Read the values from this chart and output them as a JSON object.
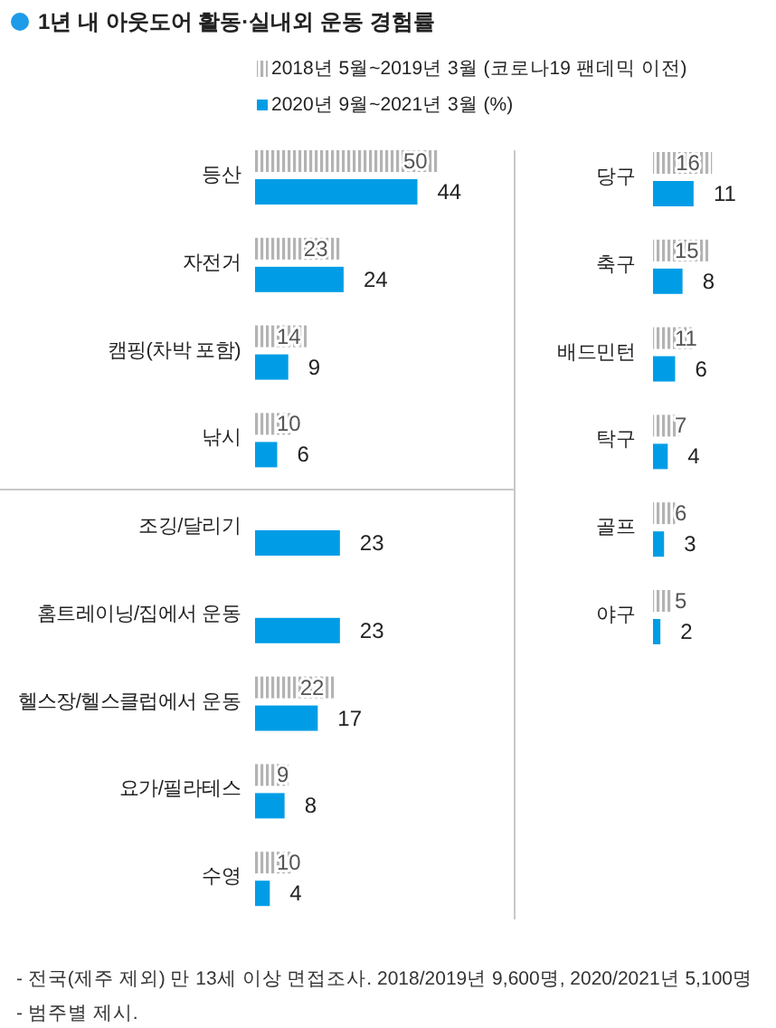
{
  "chart_data": [
    {
      "type": "bar",
      "orientation": "horizontal",
      "title": "1년 내 아웃도어 활동·실내외 운동 경험률",
      "legend": "top",
      "data_labels": true,
      "categories": [
        "등산",
        "자전거",
        "캠핑(차박 포함)",
        "낚시"
      ],
      "series": [
        {
          "name": "2018년 5월~2019년 3월 (코로나19 팬데믹 이전)",
          "color": "#b3b3b3",
          "values": [
            50,
            23,
            14,
            10
          ]
        },
        {
          "name": "2020년 9월~2021년 3월 (%)",
          "color": "#009de6",
          "values": [
            44,
            24,
            9,
            6
          ]
        }
      ],
      "annotations": [
        "- 전국(제주 제외) 만 13세 이상 면접조사. 2018/2019년 9,600명, 2020/2021년 5,100명",
        "- 범주별 제시."
      ]
    },
    {
      "type": "bar",
      "orientation": "horizontal",
      "data_labels": true,
      "categories": [
        "조깅/달리기",
        "홈트레이닝/집에서 운동",
        "헬스장/헬스클럽에서 운동",
        "요가/필라테스",
        "수영"
      ],
      "series": [
        {
          "color": "#b3b3b3",
          "values": [
            null,
            null,
            22,
            9,
            10
          ]
        },
        {
          "color": "#009de6",
          "values": [
            23,
            23,
            17,
            8,
            4
          ]
        }
      ]
    },
    {
      "type": "bar",
      "orientation": "horizontal",
      "data_labels": true,
      "categories": [
        "당구",
        "축구",
        "배드민턴",
        "탁구",
        "골프",
        "야구"
      ],
      "series": [
        {
          "color": "#b3b3b3",
          "values": [
            16,
            15,
            11,
            7,
            6,
            5
          ]
        },
        {
          "color": "#009de6",
          "values": [
            11,
            8,
            6,
            4,
            3,
            2
          ]
        }
      ]
    }
  ]
}
